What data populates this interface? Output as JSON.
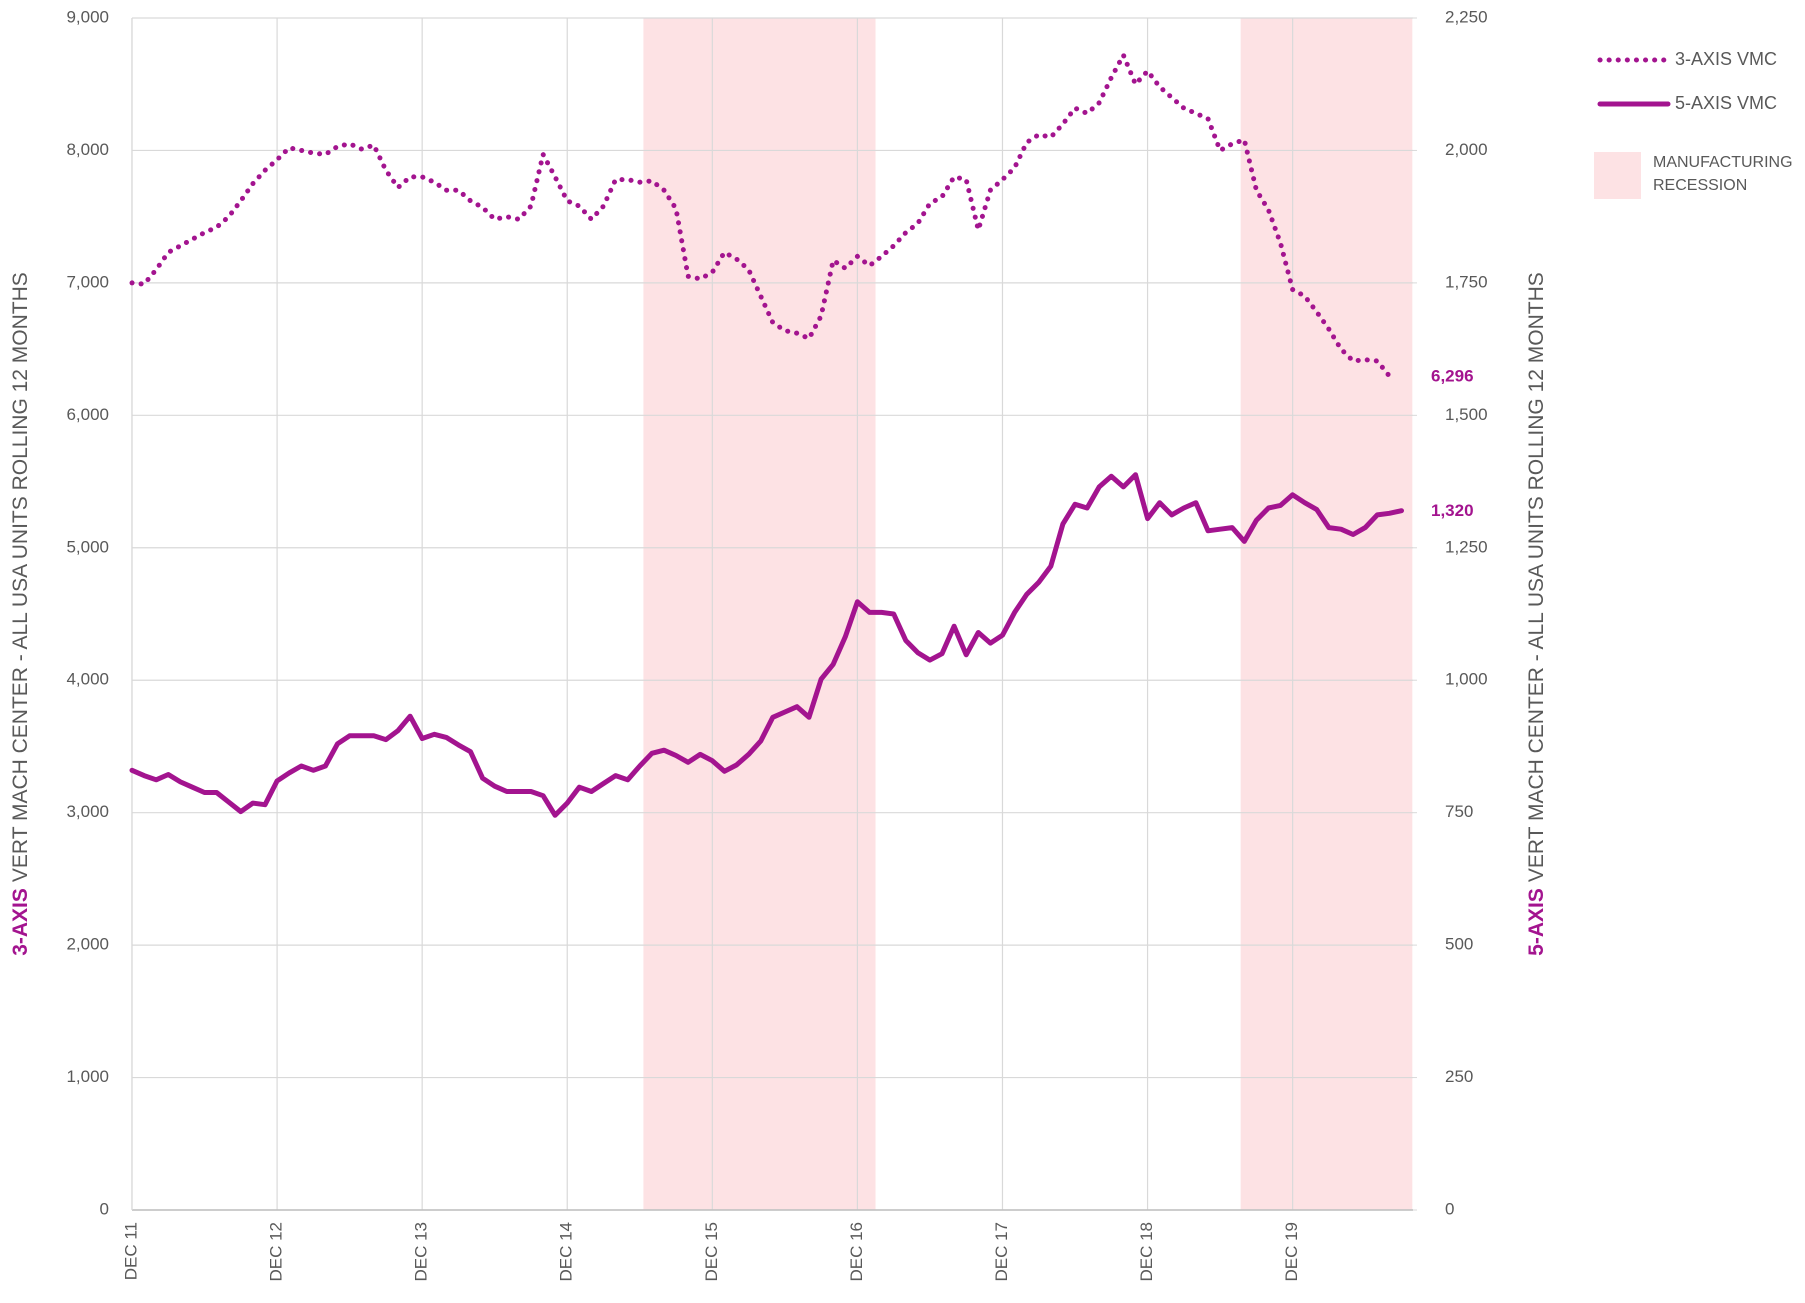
{
  "chart_data": {
    "type": "line",
    "y_label_emphasis": "3-AXIS",
    "y_label": "VERT MACH CENTER - ALL USA UNITS ROLLING 12 MONTHS",
    "y2_label_emphasis": "5-AXIS",
    "y2_label": "VERT MACH CENTER - ALL USA UNITS ROLLING 12 MONTHS",
    "categories": [
      "DEC 11",
      null,
      null,
      null,
      null,
      null,
      null,
      null,
      null,
      null,
      null,
      null,
      "DEC 12",
      null,
      null,
      null,
      null,
      null,
      null,
      null,
      null,
      null,
      null,
      null,
      "DEC 13",
      null,
      null,
      null,
      null,
      null,
      null,
      null,
      null,
      null,
      null,
      null,
      "DEC 14",
      null,
      null,
      null,
      null,
      null,
      null,
      null,
      null,
      null,
      null,
      null,
      "DEC 15",
      null,
      null,
      null,
      null,
      null,
      null,
      null,
      null,
      null,
      null,
      null,
      "DEC 16",
      null,
      null,
      null,
      null,
      null,
      null,
      null,
      null,
      null,
      null,
      null,
      "DEC 17",
      null,
      null,
      null,
      null,
      null,
      null,
      null,
      null,
      null,
      null,
      null,
      "DEC 18",
      null,
      null,
      null,
      null,
      null,
      null,
      null,
      null,
      null,
      null,
      null,
      "DEC 19",
      null,
      null,
      null,
      null,
      null,
      null,
      null,
      null,
      null
    ],
    "series": [
      {
        "name": "3-AXIS VMC",
        "color": "#a3148f",
        "style": "dotted",
        "axis": "y",
        "values": [
          7000,
          6990,
          7100,
          7230,
          7280,
          7330,
          7380,
          7420,
          7500,
          7620,
          7750,
          7850,
          7930,
          8020,
          8000,
          7980,
          7970,
          8030,
          8050,
          8010,
          8040,
          7850,
          7720,
          7800,
          7800,
          7760,
          7700,
          7700,
          7620,
          7570,
          7480,
          7500,
          7480,
          7580,
          7970,
          7800,
          7620,
          7580,
          7480,
          7580,
          7780,
          7780,
          7760,
          7770,
          7700,
          7560,
          7050,
          7030,
          7080,
          7230,
          7180,
          7100,
          6900,
          6700,
          6640,
          6620,
          6580,
          6750,
          7170,
          7110,
          7200,
          7130,
          7200,
          7280,
          7380,
          7450,
          7600,
          7650,
          7800,
          7780,
          7400,
          7700,
          7780,
          7870,
          8060,
          8120,
          8100,
          8200,
          8320,
          8280,
          8360,
          8550,
          8720,
          8500,
          8600,
          8480,
          8400,
          8320,
          8280,
          8240,
          8000,
          8050,
          8080,
          7700,
          7550,
          7300,
          6950,
          6900,
          6780,
          6650,
          6500,
          6410,
          6420,
          6410,
          6296,
          null
        ],
        "value_labels": [
          null,
          null,
          null,
          null,
          null,
          null,
          null,
          null,
          null,
          null,
          null,
          null,
          null,
          null,
          null,
          null,
          null,
          null,
          null,
          null,
          null,
          null,
          null,
          null,
          null,
          null,
          null,
          null,
          null,
          null,
          null,
          null,
          null,
          null,
          null,
          null,
          null,
          null,
          null,
          null,
          null,
          null,
          null,
          null,
          null,
          null,
          null,
          null,
          null,
          null,
          null,
          null,
          null,
          null,
          null,
          null,
          null,
          null,
          null,
          null,
          null,
          null,
          null,
          null,
          null,
          null,
          null,
          null,
          null,
          null,
          null,
          null,
          null,
          null,
          null,
          null,
          null,
          null,
          null,
          null,
          null,
          null,
          null,
          null,
          null,
          null,
          null,
          null,
          null,
          null,
          null,
          null,
          null,
          null,
          null,
          null,
          null,
          null,
          null,
          null,
          null,
          null,
          null,
          null,
          "6,296",
          null
        ]
      },
      {
        "name": "5-AXIS VMC",
        "color": "#a3148f",
        "style": "solid",
        "axis": "y2",
        "values": [
          830,
          820,
          812,
          822,
          808,
          798,
          788,
          788,
          770,
          752,
          768,
          765,
          810,
          825,
          838,
          830,
          838,
          880,
          895,
          895,
          895,
          888,
          905,
          932,
          890,
          898,
          892,
          878,
          865,
          815,
          800,
          790,
          790,
          790,
          782,
          745,
          768,
          798,
          790,
          805,
          820,
          812,
          838,
          862,
          868,
          858,
          845,
          860,
          848,
          828,
          840,
          860,
          885,
          930,
          940,
          950,
          930,
          1002,
          1030,
          1082,
          1148,
          1128,
          1128,
          1125,
          1075,
          1052,
          1038,
          1050,
          1102,
          1048,
          1090,
          1070,
          1085,
          1128,
          1162,
          1185,
          1215,
          1295,
          1332,
          1325,
          1365,
          1385,
          1365,
          1388,
          1305,
          1335,
          1312,
          1325,
          1335,
          1282,
          1285,
          1288,
          1262,
          1302,
          1325,
          1330,
          1350,
          1335,
          1322,
          1288,
          1285,
          1275,
          1288,
          1312,
          1315,
          1320
        ],
        "value_labels": [
          null,
          null,
          null,
          null,
          null,
          null,
          null,
          null,
          null,
          null,
          null,
          null,
          null,
          null,
          null,
          null,
          null,
          null,
          null,
          null,
          null,
          null,
          null,
          null,
          null,
          null,
          null,
          null,
          null,
          null,
          null,
          null,
          null,
          null,
          null,
          null,
          null,
          null,
          null,
          null,
          null,
          null,
          null,
          null,
          null,
          null,
          null,
          null,
          null,
          null,
          null,
          null,
          null,
          null,
          null,
          null,
          null,
          null,
          null,
          null,
          null,
          null,
          null,
          null,
          null,
          null,
          null,
          null,
          null,
          null,
          null,
          null,
          null,
          null,
          null,
          null,
          null,
          null,
          null,
          null,
          null,
          null,
          null,
          null,
          null,
          null,
          null,
          null,
          null,
          null,
          null,
          null,
          null,
          null,
          null,
          null,
          null,
          null,
          null,
          null,
          null,
          null,
          null,
          null,
          null,
          "1,320"
        ]
      }
    ],
    "shaded_regions": {
      "name_lines": [
        "MANUFACTURING",
        "RECESSION"
      ],
      "color": "#fde2e4",
      "ranges": [
        [
          42.3,
          61.5
        ],
        [
          91.7,
          105.9
        ]
      ]
    },
    "ylim": [
      0,
      9000
    ],
    "yticks": [
      0,
      {
        "value": 1000,
        "label": "1,000"
      },
      {
        "value": 2000,
        "label": "2,000"
      },
      {
        "value": 3000,
        "label": "3,000"
      },
      {
        "value": 4000,
        "label": "4,000"
      },
      {
        "value": 5000,
        "label": "5,000"
      },
      {
        "value": 6000,
        "label": "6,000"
      },
      {
        "value": 7000,
        "label": "7,000"
      },
      {
        "value": 8000,
        "label": "8,000"
      },
      {
        "value": 9000,
        "label": "9,000"
      }
    ],
    "y2lim": [
      0,
      2250
    ],
    "y2ticks": [
      0,
      250,
      500,
      750,
      {
        "value": 1000,
        "label": "1,000"
      },
      {
        "value": 1250,
        "label": "1,250"
      },
      {
        "value": 1500,
        "label": "1,500"
      },
      {
        "value": 1750,
        "label": "1,750"
      },
      {
        "value": 2000,
        "label": "2,000"
      },
      {
        "value": 2250,
        "label": "2,250"
      }
    ],
    "grid": true,
    "legend": "top-right"
  }
}
